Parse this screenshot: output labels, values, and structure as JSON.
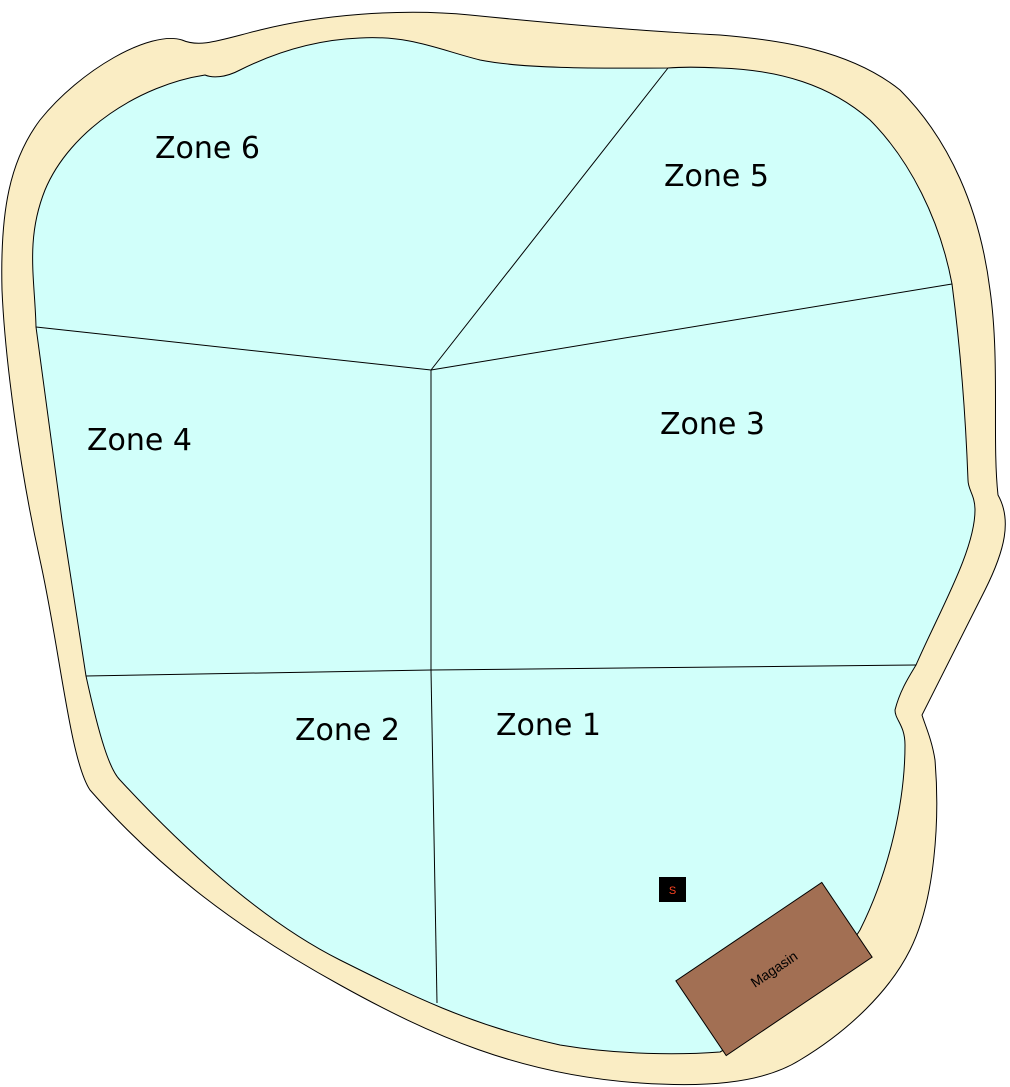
{
  "map": {
    "zones": [
      {
        "id": "zone-6",
        "label": "Zone 6"
      },
      {
        "id": "zone-5",
        "label": "Zone 5"
      },
      {
        "id": "zone-4",
        "label": "Zone 4"
      },
      {
        "id": "zone-3",
        "label": "Zone 3"
      },
      {
        "id": "zone-2",
        "label": "Zone 2"
      },
      {
        "id": "zone-1",
        "label": "Zone 1"
      }
    ],
    "sensor": {
      "label": "S"
    },
    "shop": {
      "label": "Magasin"
    }
  },
  "colors": {
    "border": "#faedc4",
    "water": "#d1fffa",
    "line": "#000000",
    "shop": "#a26f53",
    "sensor_bg": "#000000",
    "sensor_text": "#ff4422"
  }
}
